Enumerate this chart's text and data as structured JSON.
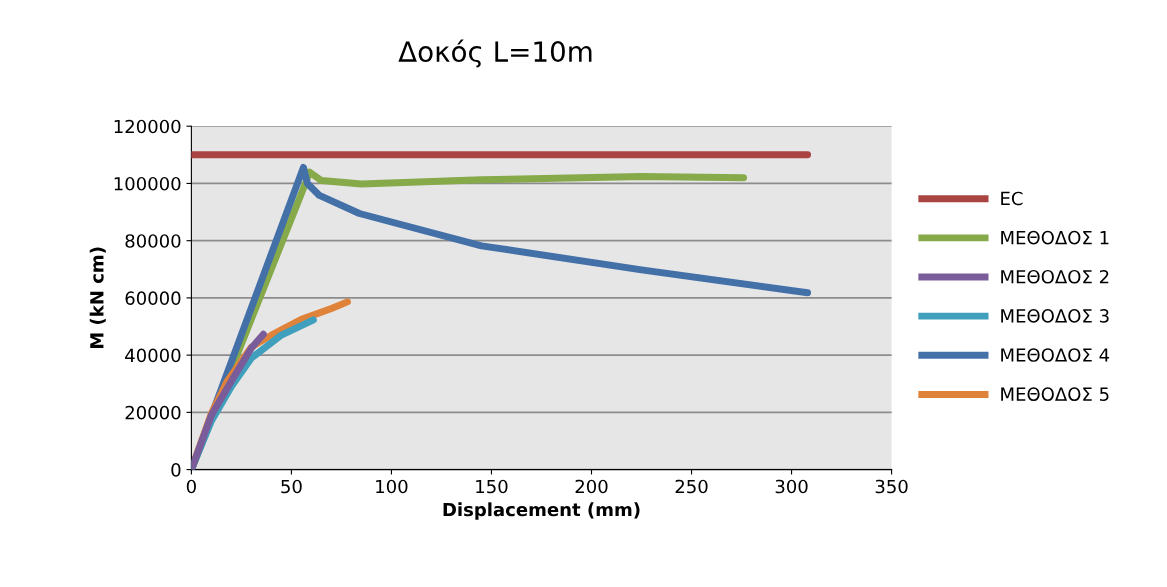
{
  "chart_data": {
    "type": "line",
    "title": "Δοκός L=10m",
    "xlabel": "Displacement (mm)",
    "ylabel": "M (kN cm)",
    "xlim": [
      0,
      350
    ],
    "xticks": [
      0,
      50,
      100,
      150,
      200,
      250,
      300,
      350
    ],
    "ylim": [
      0,
      120000
    ],
    "yticks": [
      0,
      20000,
      40000,
      60000,
      80000,
      100000,
      120000
    ],
    "grid": "y",
    "legend": "right",
    "marker": "none",
    "line_style": "solid",
    "series": [
      {
        "name": "EC",
        "color": "#a94442",
        "x": [
          0,
          308
        ],
        "values": [
          110000,
          110000
        ]
      },
      {
        "name": "ΜΕΘΟΔΟΣ 1",
        "color": "#86a94a",
        "x": [
          0,
          57,
          59,
          65,
          85,
          145,
          225,
          276
        ],
        "values": [
          0,
          100000,
          104000,
          101000,
          99800,
          101300,
          102400,
          102000
        ]
      },
      {
        "name": "ΜΕΘΟΔΟΣ 2",
        "color": "#7a5c9a",
        "x": [
          0,
          10,
          20,
          30,
          36
        ],
        "values": [
          0,
          19000,
          31000,
          42500,
          47300
        ]
      },
      {
        "name": "ΜΕΘΟΔΟΣ 3",
        "color": "#3f9fbc",
        "x": [
          0,
          10,
          20,
          30,
          45,
          61
        ],
        "values": [
          0,
          17000,
          29000,
          39000,
          47000,
          52300
        ]
      },
      {
        "name": "ΜΕΘΟΔΟΣ 4",
        "color": "#4470a8",
        "x": [
          0,
          56,
          58,
          64,
          84,
          145,
          225,
          308
        ],
        "values": [
          0,
          105600,
          100000,
          95800,
          89500,
          78200,
          69800,
          61800
        ]
      },
      {
        "name": "ΜΕΘΟΔΟΣ 5",
        "color": "#e0833a",
        "x": [
          0,
          10,
          18,
          30,
          40,
          55,
          70,
          78
        ],
        "values": [
          0,
          19600,
          31000,
          42800,
          47000,
          52500,
          56300,
          58600
        ]
      }
    ]
  }
}
